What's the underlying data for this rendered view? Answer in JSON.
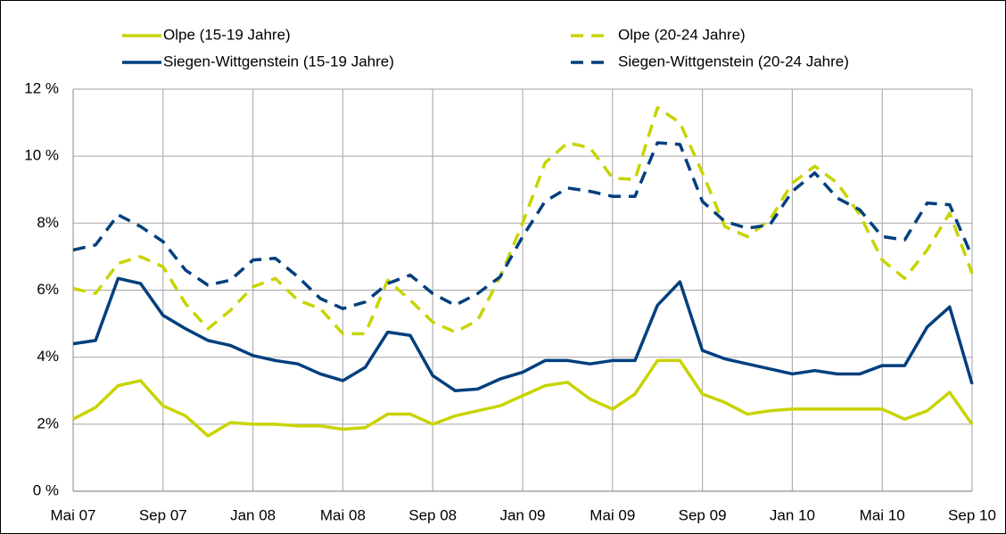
{
  "chart_data": {
    "type": "line",
    "categories": [
      "Mai 07",
      null,
      null,
      null,
      "Sep 07",
      null,
      null,
      null,
      "Jan 08",
      null,
      null,
      null,
      "Mai 08",
      null,
      null,
      null,
      "Sep 08",
      null,
      null,
      null,
      "Jan 09",
      null,
      null,
      null,
      "Mai 09",
      null,
      null,
      null,
      "Sep 09",
      null,
      null,
      null,
      "Jan 10",
      null,
      null,
      null,
      "Mai 10",
      null,
      null,
      null,
      "Sep 10"
    ],
    "series": [
      {
        "name": "Olpe (15-19 Jahre)",
        "color": "#c8d400",
        "dashed": false,
        "values": [
          2.15,
          2.5,
          3.15,
          3.3,
          2.55,
          2.25,
          1.65,
          2.05,
          2.0,
          2.0,
          1.95,
          1.95,
          1.85,
          1.9,
          2.3,
          2.3,
          2.0,
          2.25,
          2.4,
          2.55,
          2.85,
          3.15,
          3.25,
          2.75,
          2.45,
          2.9,
          3.9,
          3.9,
          2.9,
          2.65,
          2.3,
          2.4,
          2.45,
          2.45,
          2.45,
          2.45,
          2.45,
          2.15,
          2.4,
          2.95,
          2.0
        ]
      },
      {
        "name": "Olpe (20-24 Jahre)",
        "color": "#c8d400",
        "dashed": true,
        "values": [
          6.05,
          5.9,
          6.8,
          7.0,
          6.7,
          5.6,
          4.85,
          5.4,
          6.1,
          6.35,
          5.7,
          5.45,
          4.7,
          4.7,
          6.3,
          5.7,
          5.05,
          4.75,
          5.1,
          6.4,
          8.0,
          9.8,
          10.4,
          10.25,
          9.35,
          9.3,
          11.45,
          11.0,
          9.5,
          7.9,
          7.6,
          8.1,
          9.2,
          9.7,
          9.2,
          8.25,
          6.9,
          6.35,
          7.2,
          8.3,
          6.5
        ]
      },
      {
        "name": "Siegen-Wittgenstein (15-19 Jahre)",
        "color": "#003f7d",
        "dashed": false,
        "values": [
          4.4,
          4.5,
          6.35,
          6.2,
          5.25,
          4.85,
          4.5,
          4.35,
          4.05,
          3.9,
          3.8,
          3.5,
          3.3,
          3.7,
          4.75,
          4.65,
          3.45,
          3.0,
          3.05,
          3.35,
          3.55,
          3.9,
          3.9,
          3.8,
          3.9,
          3.9,
          5.55,
          6.25,
          4.2,
          3.95,
          3.8,
          3.65,
          3.5,
          3.6,
          3.5,
          3.5,
          3.75,
          3.75,
          4.9,
          5.5,
          3.2
        ]
      },
      {
        "name": "Siegen-Wittgenstein (20-24 Jahre)",
        "color": "#003f7d",
        "dashed": true,
        "values": [
          7.2,
          7.35,
          8.25,
          7.9,
          7.45,
          6.6,
          6.15,
          6.3,
          6.9,
          6.95,
          6.4,
          5.75,
          5.45,
          5.65,
          6.2,
          6.45,
          5.9,
          5.55,
          5.9,
          6.4,
          7.6,
          8.65,
          9.05,
          8.95,
          8.8,
          8.8,
          10.4,
          10.35,
          8.65,
          8.05,
          7.85,
          7.95,
          8.95,
          9.5,
          8.75,
          8.4,
          7.6,
          7.5,
          8.6,
          8.55,
          7.0
        ]
      }
    ],
    "ylim": [
      0,
      12
    ],
    "yticks": [
      {
        "value": 0,
        "label": "0 %"
      },
      {
        "value": 2,
        "label": "2%"
      },
      {
        "value": 4,
        "label": "4%"
      },
      {
        "value": 6,
        "label": "6%"
      },
      {
        "value": 8,
        "label": "8%"
      },
      {
        "value": 10,
        "label": "10 %"
      },
      {
        "value": 12,
        "label": "12 %"
      }
    ],
    "grid": true
  }
}
